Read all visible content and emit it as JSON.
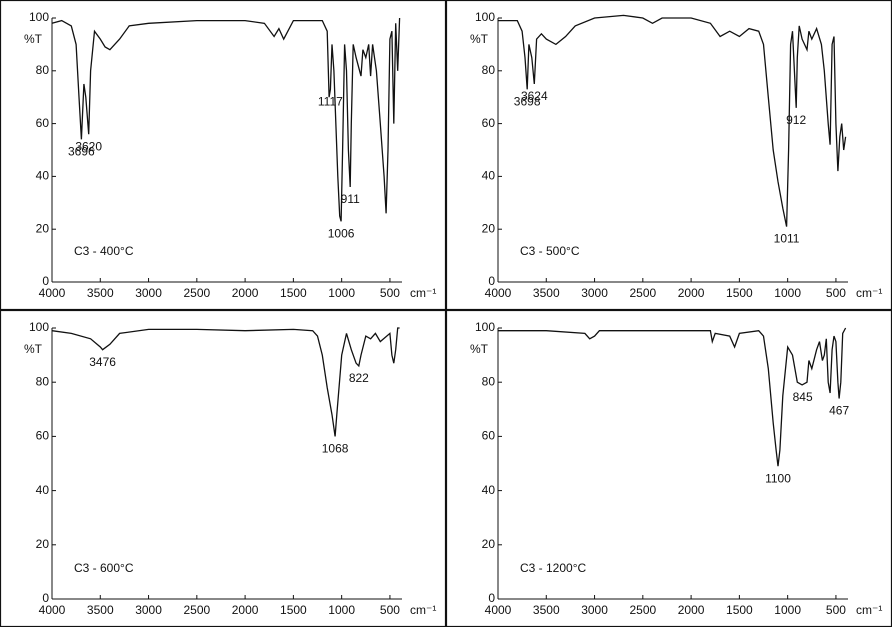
{
  "chart_data": [
    {
      "type": "line",
      "title": "C3 - 400°C",
      "ylabel": "%T",
      "xlabel": "cm⁻¹",
      "color": "#111",
      "xlim": [
        4000,
        375
      ],
      "ylim": [
        0,
        100
      ],
      "xticks": [
        4000,
        3500,
        3000,
        2500,
        2000,
        1500,
        1000,
        500
      ],
      "yticks": [
        0,
        20,
        40,
        60,
        80,
        100
      ],
      "x": [
        4000,
        3900,
        3800,
        3750,
        3720,
        3696,
        3670,
        3650,
        3620,
        3600,
        3560,
        3500,
        3450,
        3400,
        3300,
        3200,
        3000,
        2500,
        2000,
        1800,
        1700,
        1650,
        1600,
        1500,
        1200,
        1150,
        1130,
        1117,
        1100,
        1080,
        1040,
        1020,
        1006,
        990,
        970,
        950,
        930,
        911,
        900,
        880,
        850,
        800,
        780,
        750,
        720,
        700,
        680,
        640,
        600,
        560,
        540,
        520,
        500,
        480,
        460,
        440,
        420,
        400
      ],
      "values": [
        98,
        99,
        97,
        90,
        70,
        54,
        75,
        70,
        56,
        80,
        95,
        92,
        89,
        88,
        92,
        97,
        98,
        99,
        99,
        98,
        93,
        96,
        92,
        99,
        99,
        95,
        70,
        73,
        90,
        80,
        40,
        25,
        23,
        50,
        90,
        80,
        50,
        36,
        60,
        90,
        85,
        78,
        88,
        85,
        90,
        78,
        90,
        80,
        60,
        40,
        26,
        50,
        92,
        95,
        60,
        98,
        80,
        100
      ],
      "peak_labels": [
        3696,
        3620,
        1117,
        1006,
        911
      ]
    },
    {
      "type": "line",
      "title": "C3 - 500°C",
      "ylabel": "%T",
      "xlabel": "cm⁻¹",
      "color": "#111",
      "xlim": [
        4000,
        375
      ],
      "ylim": [
        0,
        100
      ],
      "xticks": [
        4000,
        3500,
        3000,
        2500,
        2000,
        1500,
        1000,
        500
      ],
      "yticks": [
        0,
        20,
        40,
        60,
        80,
        100
      ],
      "x": [
        4000,
        3800,
        3750,
        3720,
        3698,
        3680,
        3650,
        3624,
        3600,
        3550,
        3500,
        3400,
        3300,
        3200,
        3000,
        2700,
        2500,
        2400,
        2300,
        2000,
        1800,
        1700,
        1600,
        1500,
        1400,
        1300,
        1250,
        1200,
        1150,
        1100,
        1050,
        1011,
        990,
        970,
        950,
        930,
        912,
        900,
        880,
        850,
        800,
        780,
        750,
        700,
        650,
        620,
        580,
        560,
        540,
        520,
        500,
        480,
        460,
        440,
        420,
        400
      ],
      "values": [
        99,
        99,
        95,
        85,
        73,
        90,
        85,
        75,
        92,
        94,
        92,
        90,
        93,
        97,
        100,
        101,
        100,
        98,
        100,
        100,
        98,
        93,
        95,
        93,
        96,
        95,
        90,
        70,
        50,
        38,
        28,
        21,
        50,
        90,
        95,
        80,
        66,
        85,
        97,
        92,
        88,
        95,
        92,
        96,
        90,
        80,
        60,
        52,
        90,
        93,
        60,
        42,
        55,
        60,
        50,
        55
      ],
      "peak_labels": [
        3698,
        3624,
        1011,
        912
      ]
    },
    {
      "type": "line",
      "title": "C3 - 600°C",
      "ylabel": "%T",
      "xlabel": "cm⁻¹",
      "color": "#111",
      "xlim": [
        4000,
        375
      ],
      "ylim": [
        0,
        100
      ],
      "xticks": [
        4000,
        3500,
        3000,
        2500,
        2000,
        1500,
        1000,
        500
      ],
      "yticks": [
        0,
        20,
        40,
        60,
        80,
        100
      ],
      "x": [
        4000,
        3800,
        3600,
        3500,
        3476,
        3400,
        3300,
        3000,
        2500,
        2000,
        1500,
        1300,
        1250,
        1200,
        1150,
        1100,
        1068,
        1050,
        1000,
        950,
        900,
        850,
        822,
        800,
        750,
        700,
        650,
        600,
        500,
        480,
        460,
        440,
        420,
        400
      ],
      "values": [
        99,
        98,
        96,
        93,
        92,
        94,
        98,
        99.5,
        99.5,
        99,
        99.5,
        99,
        97,
        90,
        78,
        68,
        60,
        68,
        90,
        98,
        92,
        87,
        86,
        90,
        97,
        96,
        98,
        95,
        98,
        90,
        87,
        92,
        100,
        100
      ],
      "peak_labels": [
        3476,
        1068,
        822
      ]
    },
    {
      "type": "line",
      "title": "C3 - 1200°C",
      "ylabel": "%T",
      "xlabel": "cm⁻¹",
      "color": "#111",
      "xlim": [
        4000,
        375
      ],
      "ylim": [
        0,
        100
      ],
      "xticks": [
        4000,
        3500,
        3000,
        2500,
        2000,
        1500,
        1000,
        500
      ],
      "yticks": [
        0,
        20,
        40,
        60,
        80,
        100
      ],
      "x": [
        4000,
        3500,
        3100,
        3050,
        3000,
        2950,
        2500,
        1800,
        1780,
        1750,
        1600,
        1550,
        1500,
        1300,
        1250,
        1200,
        1150,
        1120,
        1100,
        1080,
        1050,
        1000,
        950,
        900,
        850,
        800,
        780,
        750,
        700,
        670,
        640,
        620,
        600,
        580,
        560,
        540,
        520,
        500,
        480,
        467,
        450,
        430,
        400
      ],
      "values": [
        99,
        99,
        98,
        96,
        97,
        99,
        99,
        99,
        95,
        98,
        97,
        93,
        98,
        99,
        97,
        85,
        65,
        55,
        49,
        55,
        75,
        93,
        90,
        80,
        79,
        80,
        88,
        85,
        92,
        95,
        88,
        90,
        96,
        80,
        76,
        92,
        97,
        95,
        80,
        74,
        80,
        98,
        100
      ],
      "peak_labels": [
        1100,
        845,
        467
      ]
    }
  ]
}
